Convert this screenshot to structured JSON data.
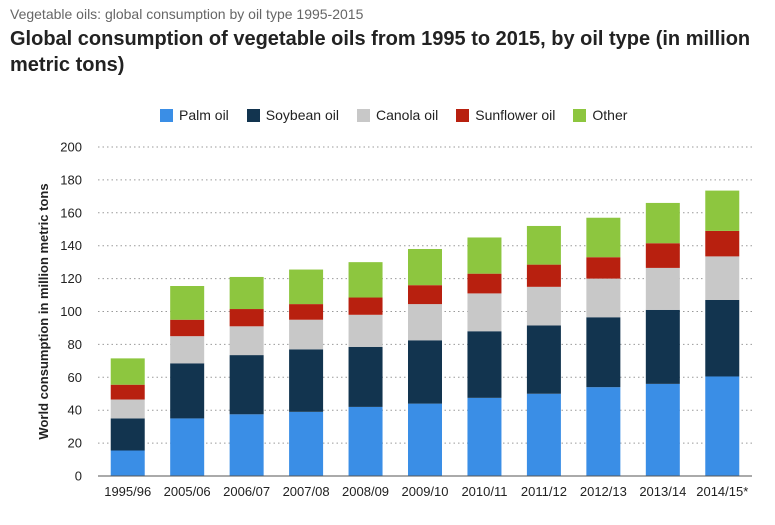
{
  "header": {
    "supertitle": "Vegetable oils: global consumption by oil type 1995-2015",
    "title": "Global consumption of vegetable oils from 1995 to 2015, by oil type (in million metric tons)"
  },
  "chart_data": {
    "type": "bar",
    "stacked": true,
    "title": "Global consumption of vegetable oils from 1995 to 2015, by oil type (in million metric tons)",
    "xlabel": "",
    "ylabel": "World consumption in million metric tons",
    "ylim": [
      0,
      200
    ],
    "yticks": [
      0,
      20,
      40,
      60,
      80,
      100,
      120,
      140,
      160,
      180,
      200
    ],
    "grid": true,
    "legend_position": "top",
    "categories": [
      "1995/96",
      "2005/06",
      "2006/07",
      "2007/08",
      "2008/09",
      "2009/10",
      "2010/11",
      "2011/12",
      "2012/13",
      "2013/14",
      "2014/15*"
    ],
    "series": [
      {
        "name": "Palm oil",
        "color": "#3a8ee6",
        "values": [
          15.5,
          35,
          37.5,
          39,
          42,
          44,
          47.5,
          50,
          54,
          56,
          60.5
        ]
      },
      {
        "name": "Soybean oil",
        "color": "#12344f",
        "values": [
          19.5,
          33.5,
          36,
          38,
          36.5,
          38.5,
          40.5,
          41.5,
          42.5,
          45,
          46.5
        ]
      },
      {
        "name": "Canola oil",
        "color": "#c8c8c8",
        "values": [
          11.5,
          16.5,
          17.5,
          18,
          19.5,
          22,
          23,
          23.5,
          23.5,
          25.5,
          26.5
        ]
      },
      {
        "name": "Sunflower oil",
        "color": "#b8200f",
        "values": [
          9,
          10,
          10.5,
          9.5,
          10.5,
          11.5,
          12,
          13.5,
          13,
          15,
          15.5
        ]
      },
      {
        "name": "Other",
        "color": "#8dc63f",
        "values": [
          16,
          20.5,
          19.5,
          21,
          21.5,
          22,
          22,
          23.5,
          24,
          24.5,
          24.5
        ]
      }
    ]
  }
}
